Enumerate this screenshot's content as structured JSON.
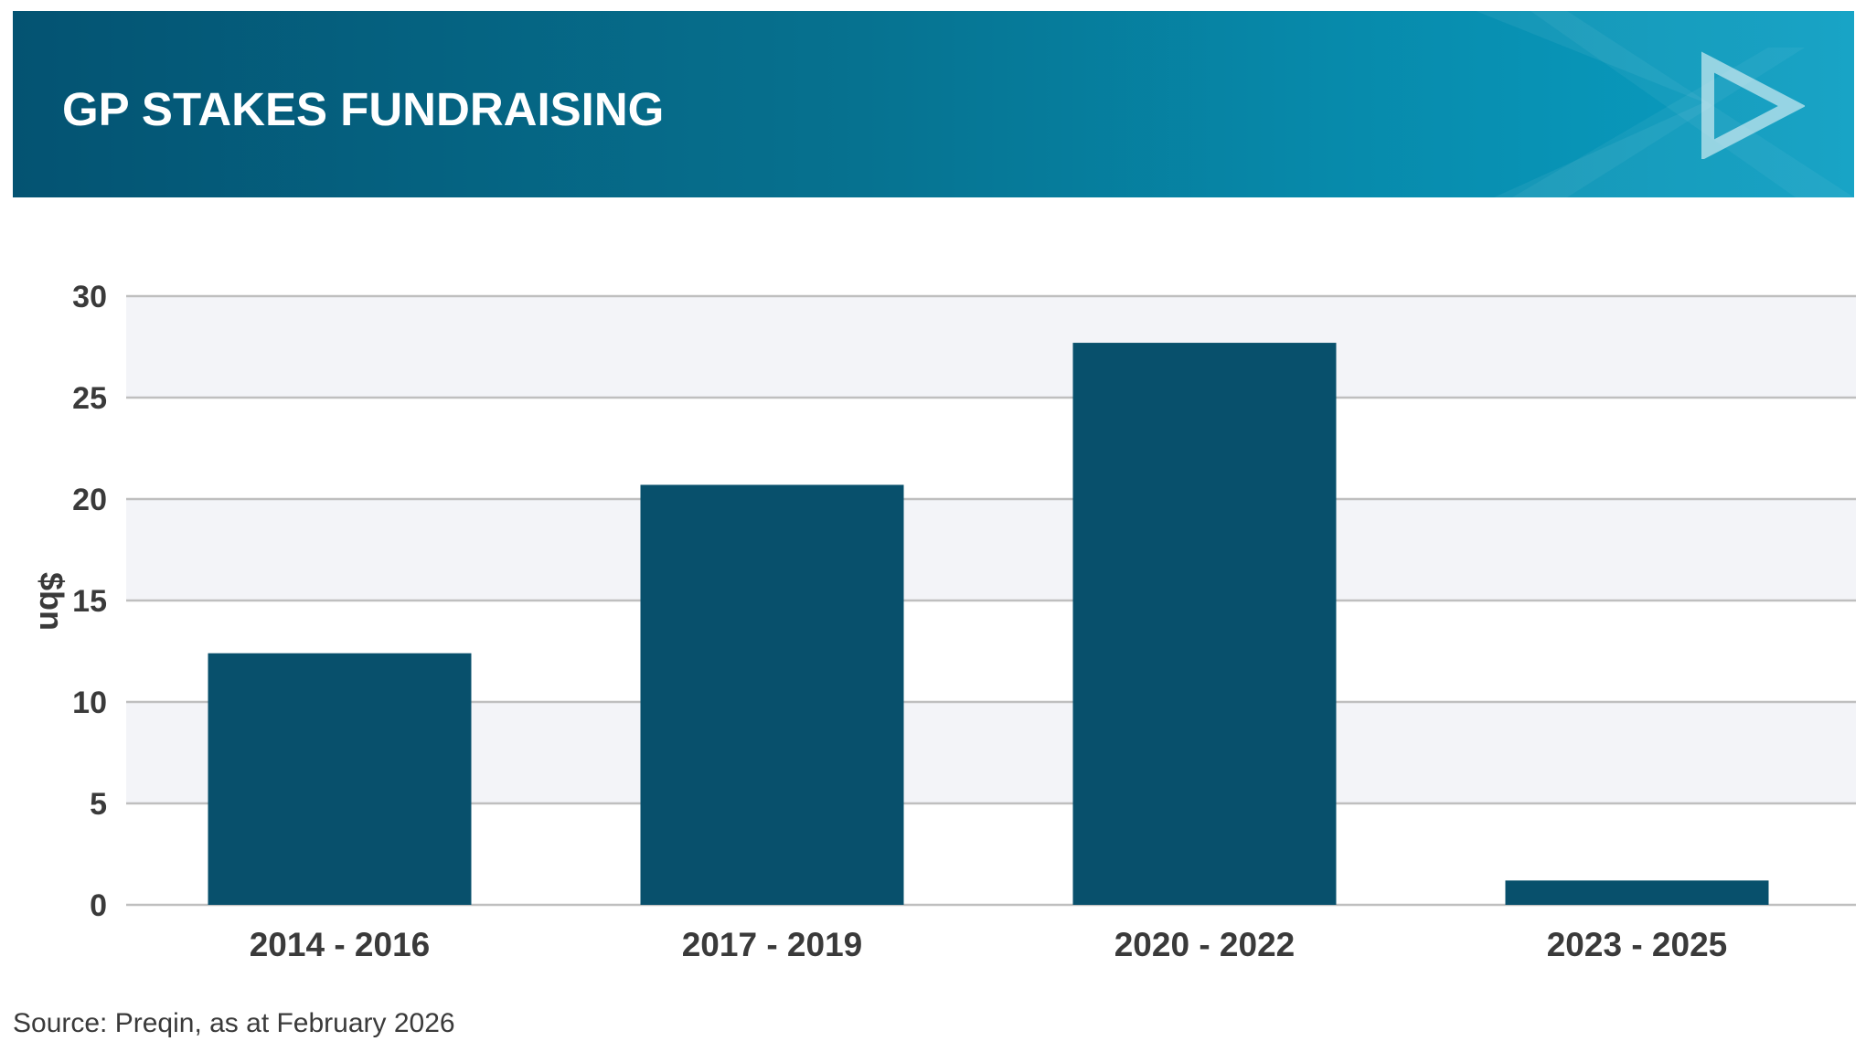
{
  "banner": {
    "title": "GP STAKES FUNDRAISING"
  },
  "colors": {
    "bar": "#08506c",
    "band": "#f3f4f8",
    "grid": "#bfbfbf",
    "text": "#3a3a3a"
  },
  "chart_data": {
    "type": "bar",
    "title": "GP STAKES FUNDRAISING",
    "ylabel": "$bn",
    "xlabel": "",
    "categories": [
      "2014 - 2016",
      "2017 - 2019",
      "2020 - 2022",
      "2023 - 2025"
    ],
    "values": [
      12.4,
      20.7,
      27.7,
      1.2
    ],
    "ylim": [
      0,
      30
    ],
    "yticks": [
      0,
      5,
      10,
      15,
      20,
      25,
      30
    ],
    "grid": true,
    "alternating_bands": true,
    "legend": "none"
  },
  "footer": {
    "source": "Source: Preqin, as at February 2026"
  }
}
